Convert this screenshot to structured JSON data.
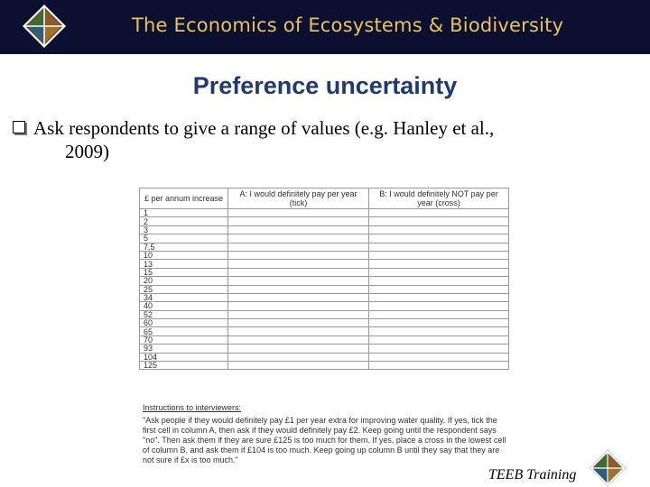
{
  "header": {
    "title": "The Economics of Ecosystems & Biodiversity",
    "logo_icon": "teeb-diamond-logo-icon"
  },
  "slide": {
    "title": "Preference uncertainty",
    "bullet_line1": "Ask respondents to give a range of values (e.g. Hanley et al.,",
    "bullet_line2": "2009)"
  },
  "table": {
    "headers": [
      "£ per annum increase",
      "A: I would definitely pay per year (tick)",
      "B: I would definitely NOT pay per year (cross)"
    ],
    "rows": [
      "1",
      "2",
      "3",
      "5",
      "7.5",
      "10",
      "13",
      "15",
      "20",
      "25",
      "34",
      "40",
      "52",
      "60",
      "65",
      "70",
      "93",
      "104",
      "125"
    ]
  },
  "instructions": {
    "title": "Instructions to interviewers:",
    "text": "\"Ask people if they would definitely pay £1 per year extra for improving water quality. If yes, tick the first cell in column A, then ask if they would definitely pay £2. Keep going until the respondent says \"no\". Then ask them if they are sure £125 is too much for them. If yes, place a cross in the lowest cell of column B, and ask them if £104 is too much. Keep going up column B until they say that they are not sure if £x is too much.\""
  },
  "footer": {
    "label": "TEEB Training"
  },
  "colors": {
    "banner_bg": "#0b0f30",
    "banner_text": "#e8c45a",
    "title_blue": "#1f3a73"
  }
}
